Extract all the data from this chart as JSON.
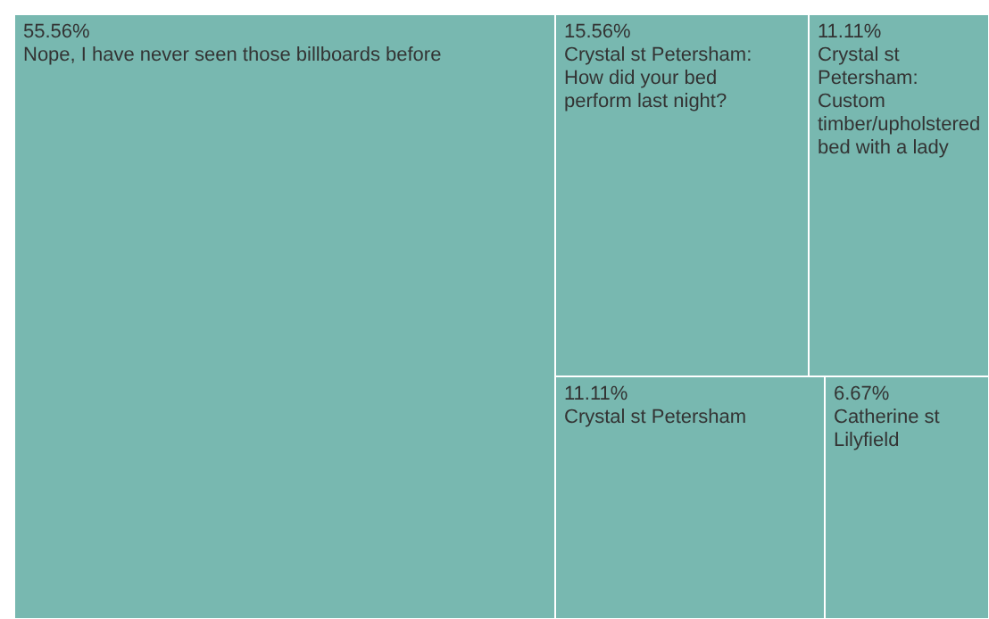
{
  "chart_data": {
    "type": "other",
    "categories": [
      "Nope, I have never seen those billboards before",
      "Crystal st Petersham: How did your bed perform last night?",
      "Crystal st Petersham: Custom timber/upholstered bed with a lady",
      "Crystal st Petersham",
      "Catherine st Lilyfield"
    ],
    "values": [
      55.56,
      15.56,
      11.11,
      11.11,
      6.67
    ],
    "value_labels": [
      "55.56%",
      "15.56%",
      "11.11%",
      "11.11%",
      "6.67%"
    ],
    "color": "#78b8b0"
  }
}
